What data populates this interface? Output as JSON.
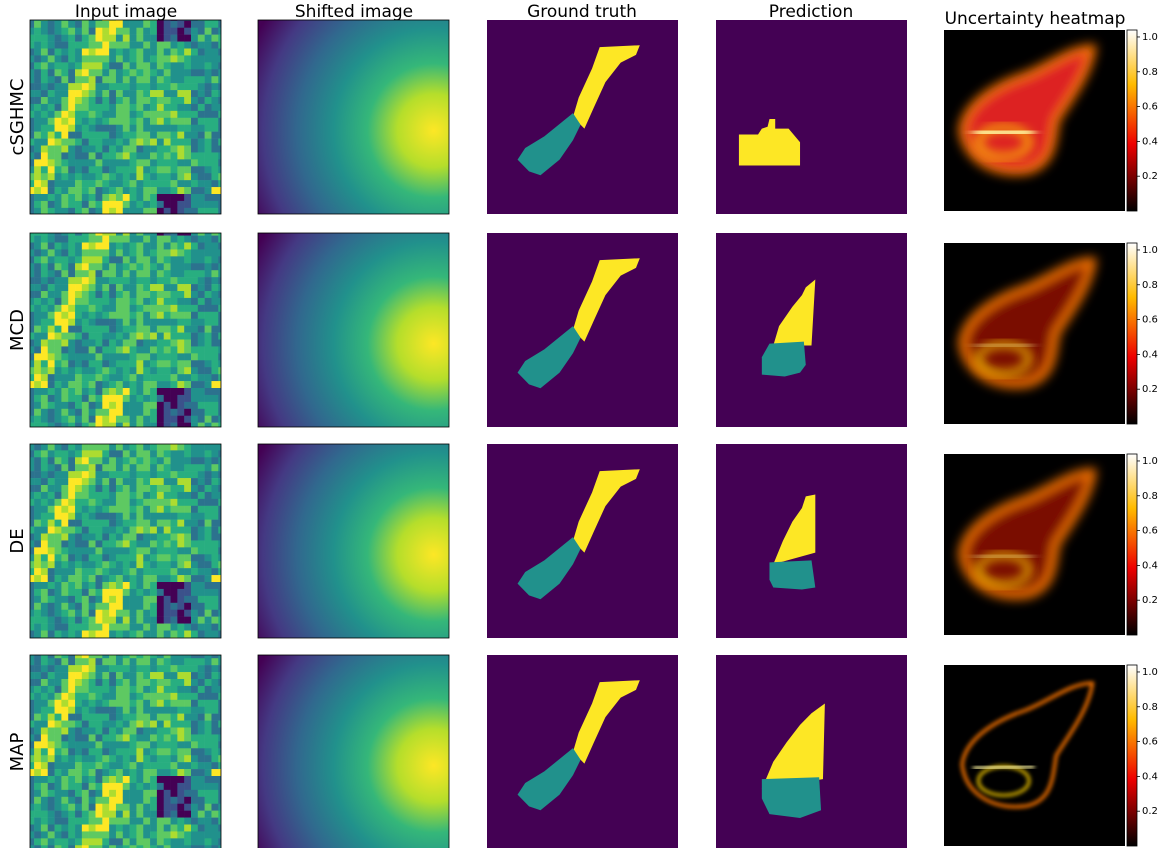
{
  "columns": [
    "Input image",
    "Shifted image",
    "Ground truth",
    "Prediction",
    "Uncertainty heatmap"
  ],
  "rows": [
    "cSGHMC",
    "MCD",
    "DE",
    "MAP"
  ],
  "colorbar": {
    "lim": [
      0,
      1.04
    ],
    "ticks": [
      0.2,
      0.4,
      0.6,
      0.8,
      {
        "value": 1,
        "label": "1.0"
      }
    ]
  }
}
